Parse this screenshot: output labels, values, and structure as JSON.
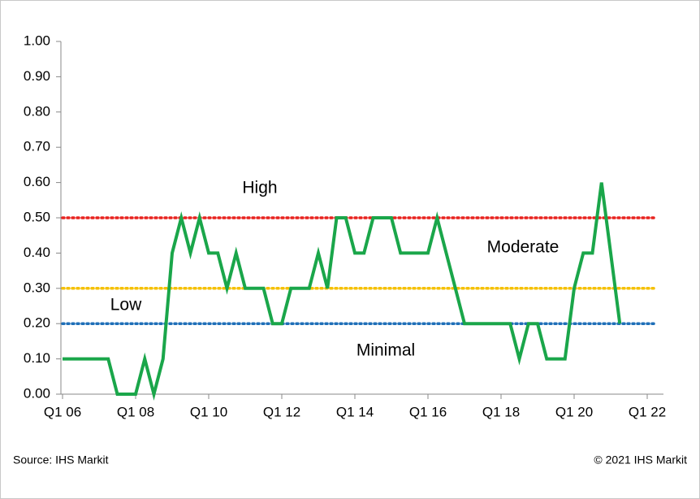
{
  "chart_data": {
    "type": "line",
    "categories": [
      "Q1 06",
      null,
      null,
      null,
      null,
      null,
      null,
      null,
      "Q1 08",
      null,
      null,
      null,
      null,
      null,
      null,
      null,
      "Q1 10",
      null,
      null,
      null,
      null,
      null,
      null,
      null,
      "Q1 12",
      null,
      null,
      null,
      null,
      null,
      null,
      null,
      "Q1 14",
      null,
      null,
      null,
      null,
      null,
      null,
      null,
      "Q1 16",
      null,
      null,
      null,
      null,
      null,
      null,
      null,
      "Q1 18",
      null,
      null,
      null,
      null,
      null,
      null,
      null,
      "Q1 20",
      null,
      null,
      null,
      null,
      null,
      null,
      null,
      "Q1 22"
    ],
    "values": [
      0.1,
      0.1,
      0.1,
      0.1,
      0.1,
      0.1,
      0,
      0,
      0,
      0.1,
      0,
      0.1,
      0.4,
      0.5,
      0.4,
      0.5,
      0.4,
      0.4,
      0.3,
      0.4,
      0.3,
      0.3,
      0.3,
      0.2,
      0.2,
      0.3,
      0.3,
      0.3,
      0.4,
      0.3,
      0.5,
      0.5,
      0.4,
      0.4,
      0.5,
      0.5,
      0.5,
      0.4,
      0.4,
      0.4,
      0.4,
      0.5,
      0.4,
      0.3,
      0.2,
      0.2,
      0.2,
      0.2,
      0.2,
      0.2,
      0.1,
      0.2,
      0.2,
      0.1,
      0.1,
      0.1,
      0.3,
      0.4,
      0.4,
      0.6,
      0.4,
      0.2,
      null,
      null,
      null
    ],
    "color": "#1aa64a",
    "ylim": [
      0,
      1
    ],
    "yticks": [
      {
        "value": 0,
        "label": "0.00"
      },
      {
        "value": 0.1,
        "label": "0.10"
      },
      {
        "value": 0.2,
        "label": "0.20"
      },
      {
        "value": 0.3,
        "label": "0.30"
      },
      {
        "value": 0.4,
        "label": "0.40"
      },
      {
        "value": 0.5,
        "label": "0.50"
      },
      {
        "value": 0.6,
        "label": "0.60"
      },
      {
        "value": 0.7,
        "label": "0.70"
      },
      {
        "value": 0.8,
        "label": "0.80"
      },
      {
        "value": 0.9,
        "label": "0.90"
      },
      {
        "value": 1,
        "label": "1.00"
      }
    ],
    "thresholds": [
      {
        "value": 0.5,
        "color": "#e8231f"
      },
      {
        "value": 0.3,
        "color": "#f5c000"
      },
      {
        "value": 0.2,
        "color": "#1f6fb8"
      }
    ],
    "annotations": [
      {
        "text": "High",
        "color": "#e8231f"
      },
      {
        "text": "Moderate",
        "color": "#f08a3c"
      },
      {
        "text": "Low",
        "color": "#1f6fb8"
      },
      {
        "text": "Minimal",
        "color": "#1ea0d8"
      }
    ],
    "source": "Source: IHS Markit",
    "copyright": "© 2021 IHS Markit"
  }
}
